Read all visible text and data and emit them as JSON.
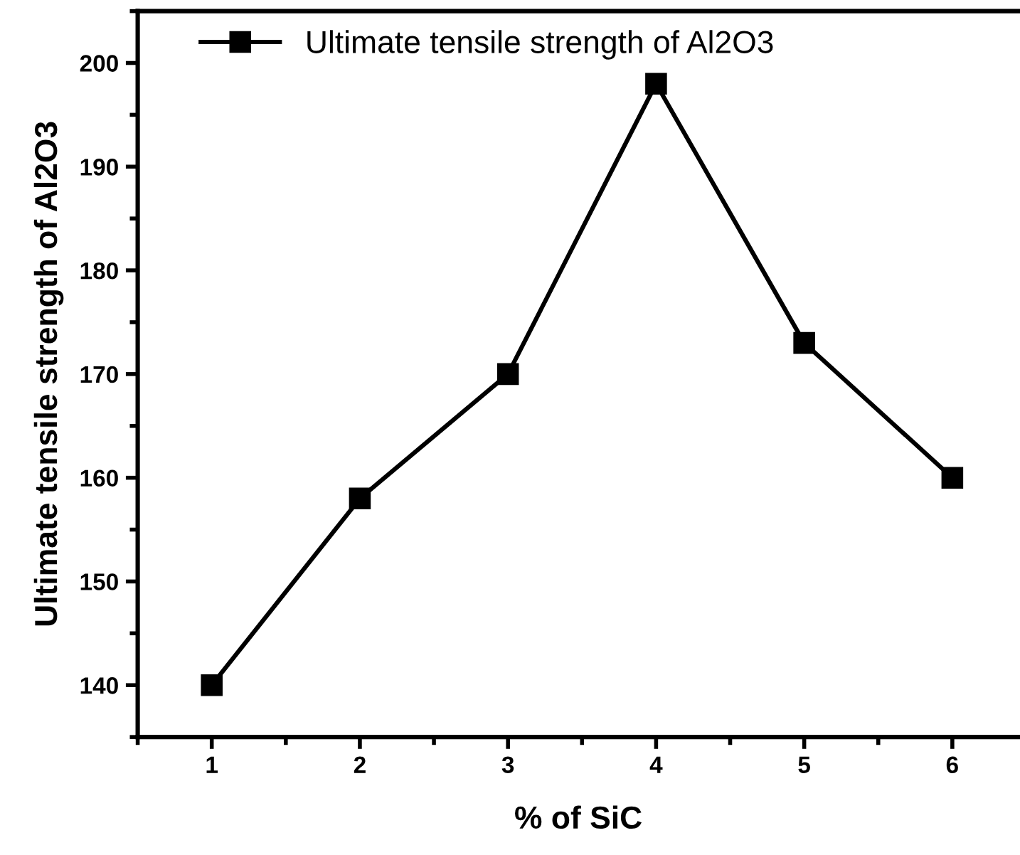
{
  "chart_data": {
    "type": "line",
    "xlabel": "% of SiC",
    "ylabel": "Ultimate tensile strength of Al2O3",
    "x": [
      1,
      2,
      3,
      4,
      5,
      6
    ],
    "series": [
      {
        "name": "Ultimate tensile strength of Al2O3",
        "color": "#000000",
        "values": [
          140,
          158,
          170,
          198,
          173,
          160
        ]
      }
    ],
    "xlim": [
      0.5,
      6.45
    ],
    "xticks": [
      1,
      2,
      3,
      4,
      5,
      6
    ],
    "ylim": [
      135,
      205
    ],
    "yticks": [
      140,
      150,
      160,
      170,
      180,
      190,
      200
    ],
    "marker": "square",
    "line_style": "solid",
    "legend": "top left",
    "grid": false
  }
}
